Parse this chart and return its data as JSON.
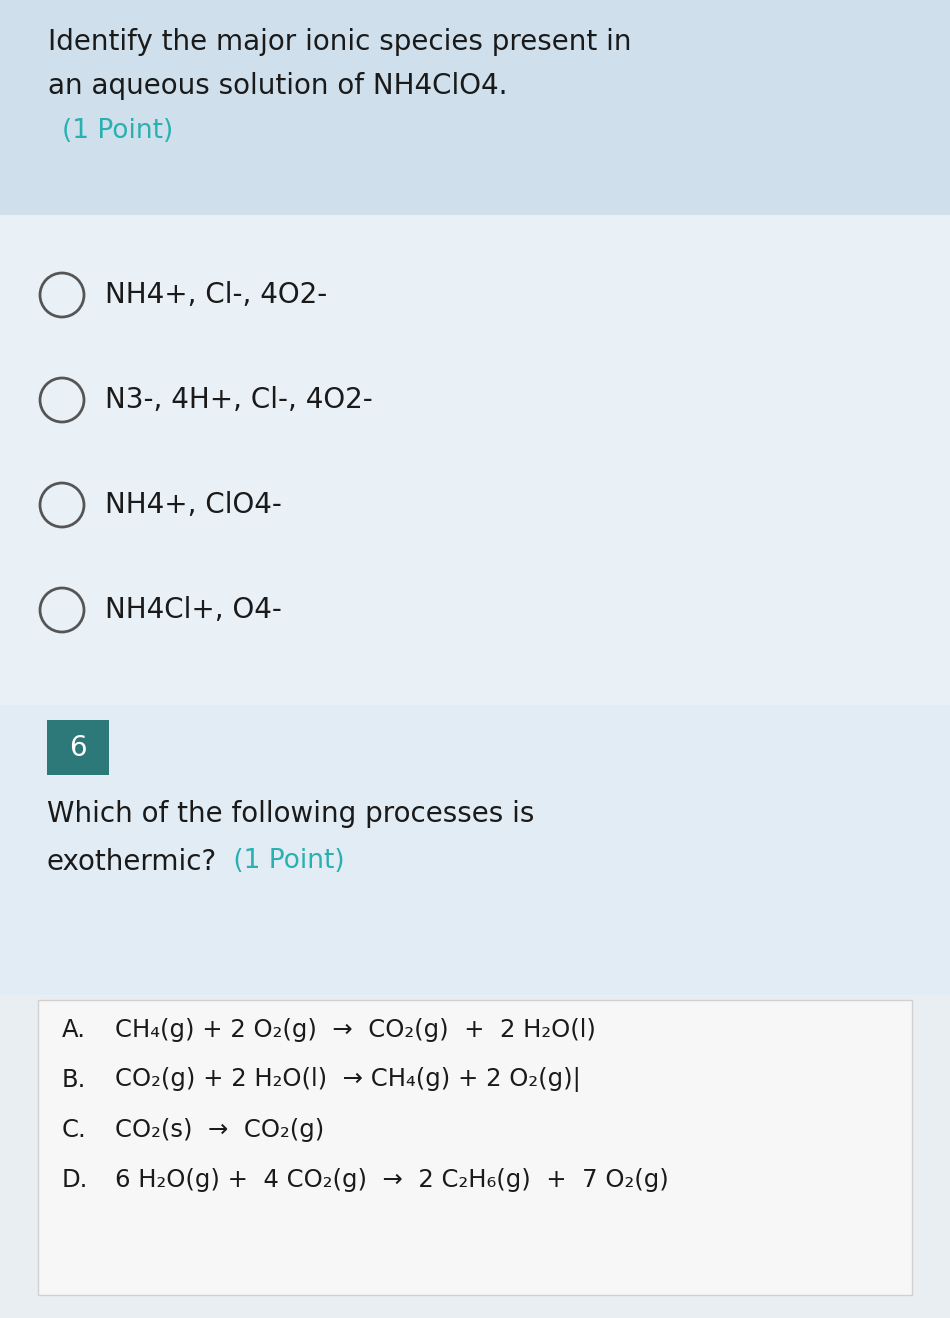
{
  "bg_main": "#e8eef2",
  "bg_header1": "#cfe0ec",
  "bg_options": "#eaf1f6",
  "bg_q2_section": "#e2ecf4",
  "bg_answers_box": "#f7f7f7",
  "border_answers": "#d0d0d0",
  "q1_title_line1": "Identify the major ionic species present in",
  "q1_title_line2": "an aqueous solution of NH4ClO4.",
  "q1_point": "(1 Point)",
  "point_color": "#2ab0b0",
  "q1_options": [
    "NH4+, Cl-, 4O2-",
    "N3-, 4H+, Cl-, 4O2-",
    "NH4+, ClO4-",
    "NH4Cl+, O4-"
  ],
  "number_box_color": "#2d7878",
  "number_box_text": "6",
  "number_box_text_color": "#ffffff",
  "q2_line1": "Which of the following processes is",
  "q2_line2_pre": "exothermic?",
  "q2_line2_point": " (1 Point)",
  "answers": [
    {
      "label": "A.",
      "text": "CH₄(g) + 2 O₂(g)  →  CO₂(g)  +  2 H₂O(l)"
    },
    {
      "label": "B.",
      "text": "CO₂(g) + 2 H₂O(l)  → CH₄(g) + 2 O₂(g)|"
    },
    {
      "label": "C.",
      "text": "CO₂(s)  →  CO₂(g)"
    },
    {
      "label": "D.",
      "text": "6 H₂O(g) +  4 CO₂(g)  →  2 C₂H₆(g)  +  7 O₂(g)"
    }
  ],
  "text_color": "#1a1a1a",
  "circle_color": "#555555",
  "title_fontsize": 20,
  "option_fontsize": 20,
  "answer_fontsize": 17.5,
  "point_fontsize": 19
}
